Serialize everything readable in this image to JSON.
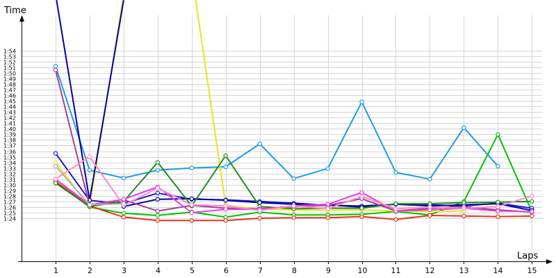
{
  "chart_data": {
    "type": "line",
    "xlabel": "Laps",
    "ylabel": "Time",
    "x": [
      1,
      2,
      3,
      4,
      5,
      6,
      7,
      8,
      9,
      10,
      11,
      12,
      13,
      14,
      15
    ],
    "x_ticks": [
      "1",
      "2",
      "3",
      "4",
      "5",
      "6",
      "7",
      "8",
      "9",
      "10",
      "11",
      "12",
      "13",
      "14",
      "15"
    ],
    "y_ticks": [
      "1:24",
      "1:25",
      "1:26",
      "1:27",
      "1:28",
      "1:29",
      "1:30",
      "1:31",
      "1:32",
      "1:33",
      "1:34",
      "1:35",
      "1:36",
      "1:37",
      "1:38",
      "1:39",
      "1:40",
      "1:41",
      "1:42",
      "1:43",
      "1:44",
      "1:45",
      "1:46",
      "1:47",
      "1:48",
      "1:49",
      "1:50",
      "1:51",
      "1:52",
      "1:53",
      "1:54"
    ],
    "y_tick_seconds": [
      84,
      85,
      86,
      87,
      88,
      89,
      90,
      91,
      92,
      93,
      94,
      95,
      96,
      97,
      98,
      99,
      100,
      101,
      102,
      103,
      104,
      105,
      106,
      107,
      108,
      109,
      110,
      111,
      112,
      113,
      114
    ],
    "ylim_seconds": [
      76.3,
      120.3
    ],
    "xlim": [
      0,
      15.3
    ],
    "grid": true,
    "series": [
      {
        "color": "#1e9be4",
        "values": [
          111.2,
          92.6,
          91.2,
          92.6,
          93.0,
          93.2,
          97.3,
          91.1,
          92.9,
          104.8,
          92.2,
          91.0,
          100.2,
          93.3,
          null
        ]
      },
      {
        "color": "#00c000",
        "values": [
          90.6,
          86.0,
          84.9,
          84.5,
          85.1,
          84.2,
          85.1,
          84.6,
          84.6,
          84.7,
          85.2,
          84.6,
          87.0,
          99.0,
          85.2
        ]
      },
      {
        "color": "#1a1ad0",
        "values": [
          95.6,
          87.2,
          86.6,
          88.5,
          87.4,
          87.3,
          87.0,
          86.7,
          86.3,
          86.2,
          86.5,
          86.4,
          86.2,
          86.7,
          85.8
        ]
      },
      {
        "color": "#e6e61a",
        "values": [
          94.0,
          86.0,
          124.0,
          null,
          null,
          null,
          null,
          null,
          null,
          null,
          null,
          null,
          null,
          null,
          null
        ]
      },
      {
        "color": "#e6e61a",
        "values": [
          null,
          null,
          null,
          null,
          128.0,
          86.3,
          85.6,
          85.5,
          85.4,
          85.5,
          85.3,
          85.2,
          85.3,
          null,
          null
        ]
      },
      {
        "color": "#0000a0",
        "values": [
          124.0,
          87.2,
          123.0,
          null,
          null,
          null,
          null,
          null,
          null,
          null,
          null,
          null,
          null,
          null,
          null
        ]
      },
      {
        "color": "#0000a0",
        "values": [
          null,
          null,
          86.1,
          87.4,
          87.5,
          87.2,
          86.8,
          86.5,
          86.4,
          86.0,
          86.5,
          86.2,
          86.4,
          86.6,
          85.4
        ]
      },
      {
        "color": "#e6331a",
        "values": [
          90.6,
          86.2,
          84.2,
          83.6,
          83.6,
          83.6,
          84.0,
          84.1,
          84.1,
          84.3,
          83.8,
          84.5,
          84.4,
          84.3,
          84.4
        ]
      },
      {
        "color": "#208c20",
        "values": [
          90.3,
          86.1,
          87.0,
          94.0,
          86.2,
          95.2,
          86.1,
          85.7,
          85.8,
          85.8,
          86.6,
          86.6,
          86.8,
          86.9,
          87.0
        ]
      },
      {
        "color": "#a0409a",
        "values": [
          110.5,
          86.3,
          87.3,
          85.3,
          86.3,
          85.8,
          85.7,
          86.1,
          86.3,
          87.5,
          85.3,
          85.8,
          86.1,
          85.5,
          85.1
        ]
      },
      {
        "color": "#e040e0",
        "values": [
          91.0,
          86.4,
          87.4,
          89.6,
          85.0,
          85.6,
          85.6,
          86.2,
          86.5,
          88.6,
          85.3,
          85.5,
          85.8,
          85.3,
          85.2
        ]
      },
      {
        "color": "#ff88cc",
        "values": [
          91.0,
          95.0,
          86.3,
          89.4,
          86.4,
          86.2,
          85.4,
          86.2,
          85.7,
          87.9,
          85.7,
          86.0,
          85.8,
          86.1,
          88.0
        ]
      },
      {
        "color": "#b0b0b0",
        "values": [
          93.3,
          86.4,
          86.6,
          null,
          null,
          null,
          null,
          null,
          null,
          null,
          null,
          null,
          null,
          null,
          null
        ]
      }
    ]
  }
}
